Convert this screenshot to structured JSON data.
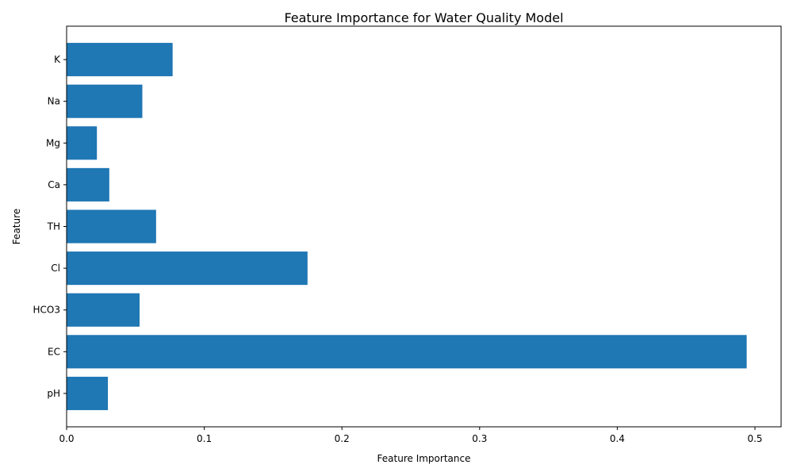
{
  "chart_data": {
    "type": "bar",
    "orientation": "horizontal",
    "title": "Feature Importance for Water Quality Model",
    "xlabel": "Feature Importance",
    "ylabel": "Feature",
    "categories": [
      "pH",
      "EC",
      "HCO3",
      "Cl",
      "TH",
      "Ca",
      "Mg",
      "Na",
      "K"
    ],
    "values": [
      0.03,
      0.494,
      0.053,
      0.175,
      0.065,
      0.031,
      0.022,
      0.055,
      0.077
    ],
    "xlim": [
      0,
      0.519
    ],
    "xticks": [
      0.0,
      0.1,
      0.2,
      0.3,
      0.4,
      0.5
    ],
    "xtick_labels": [
      "0.0",
      "0.1",
      "0.2",
      "0.3",
      "0.4",
      "0.5"
    ],
    "grid": false,
    "bar_color": "#1f77b4"
  }
}
